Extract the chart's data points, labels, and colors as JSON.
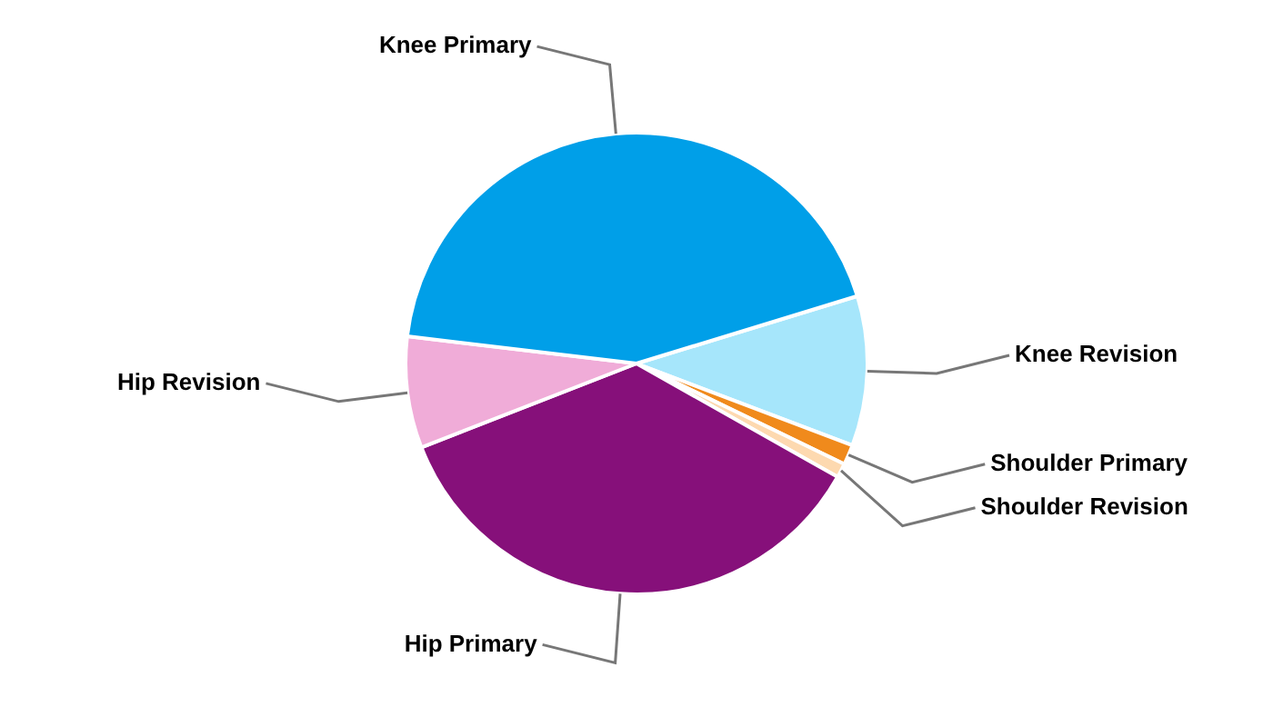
{
  "chart_data": {
    "type": "pie",
    "categories": [
      "Knee Revision",
      "Shoulder Primary",
      "Shoulder Revision",
      "Hip Primary",
      "Hip Revision",
      "Knee Primary"
    ],
    "values": [
      10.5,
      1.4,
      1,
      35.9,
      7.8,
      43.4
    ],
    "colors": [
      "#a6e6fb",
      "#f08a1c",
      "#fdd9b0",
      "#86107a",
      "#f0acd8",
      "#009fe8"
    ]
  }
}
